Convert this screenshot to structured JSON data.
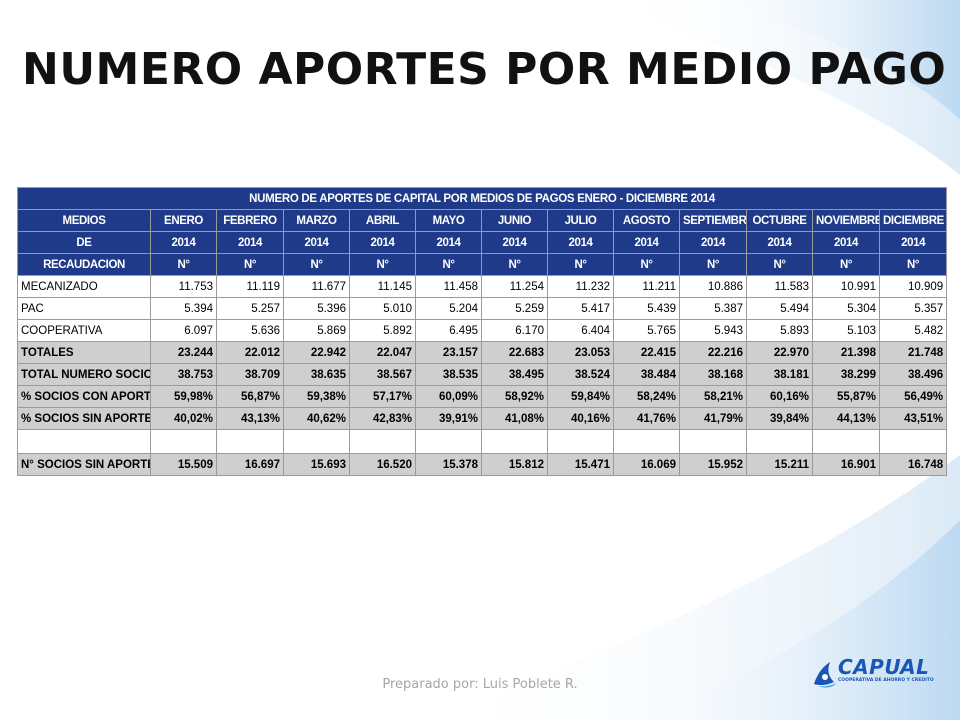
{
  "slide": {
    "title": "NUMERO APORTES POR MEDIO PAGO",
    "footer": "Preparado por: Luis Poblete R.",
    "logo_text": "CAPUAL",
    "logo_subtext": "COOPERATIVA DE AHORRO Y CREDITO"
  },
  "colors": {
    "header_bg": "#1f3a88",
    "total_row_bg": "#cfcfcf",
    "logo_blue": "#1a57b5",
    "swoosh_blue": "#cfe3f5"
  },
  "table": {
    "title": "NUMERO DE APORTES DE CAPITAL POR MEDIOS DE PAGOS ENERO - DICIEMBRE 2014",
    "header_first_col": [
      "MEDIOS",
      "DE",
      "RECAUDACION"
    ],
    "months": [
      {
        "name": "ENERO",
        "year": "2014",
        "unit": "N°"
      },
      {
        "name": "FEBRERO",
        "year": "2014",
        "unit": "N°"
      },
      {
        "name": "MARZO",
        "year": "2014",
        "unit": "N°"
      },
      {
        "name": "ABRIL",
        "year": "2014",
        "unit": "N°"
      },
      {
        "name": "MAYO",
        "year": "2014",
        "unit": "N°"
      },
      {
        "name": "JUNIO",
        "year": "2014",
        "unit": "N°"
      },
      {
        "name": "JULIO",
        "year": "2014",
        "unit": "N°"
      },
      {
        "name": "AGOSTO",
        "year": "2014",
        "unit": "N°"
      },
      {
        "name": "SEPTIEMBRE",
        "year": "2014",
        "unit": "N°"
      },
      {
        "name": "OCTUBRE",
        "year": "2014",
        "unit": "N°"
      },
      {
        "name": "NOVIEMBRE",
        "year": "2014",
        "unit": "N°"
      },
      {
        "name": "DICIEMBRE",
        "year": "2014",
        "unit": "N°"
      }
    ],
    "rows": [
      {
        "label": "MECANIZADO",
        "style": "normal",
        "values": [
          "11.753",
          "11.119",
          "11.677",
          "11.145",
          "11.458",
          "11.254",
          "11.232",
          "11.211",
          "10.886",
          "11.583",
          "10.991",
          "10.909"
        ]
      },
      {
        "label": "PAC",
        "style": "normal",
        "values": [
          "5.394",
          "5.257",
          "5.396",
          "5.010",
          "5.204",
          "5.259",
          "5.417",
          "5.439",
          "5.387",
          "5.494",
          "5.304",
          "5.357"
        ]
      },
      {
        "label": "COOPERATIVA",
        "style": "normal",
        "values": [
          "6.097",
          "5.636",
          "5.869",
          "5.892",
          "6.495",
          "6.170",
          "6.404",
          "5.765",
          "5.943",
          "5.893",
          "5.103",
          "5.482"
        ]
      },
      {
        "label": "TOTALES",
        "style": "gray",
        "values": [
          "23.244",
          "22.012",
          "22.942",
          "22.047",
          "23.157",
          "22.683",
          "23.053",
          "22.415",
          "22.216",
          "22.970",
          "21.398",
          "21.748"
        ]
      },
      {
        "label": "TOTAL NUMERO SOCIOS",
        "style": "gray",
        "values": [
          "38.753",
          "38.709",
          "38.635",
          "38.567",
          "38.535",
          "38.495",
          "38.524",
          "38.484",
          "38.168",
          "38.181",
          "38.299",
          "38.496"
        ]
      },
      {
        "label": "% SOCIOS CON APORTES",
        "style": "gray",
        "values": [
          "59,98%",
          "56,87%",
          "59,38%",
          "57,17%",
          "60,09%",
          "58,92%",
          "59,84%",
          "58,24%",
          "58,21%",
          "60,16%",
          "55,87%",
          "56,49%"
        ]
      },
      {
        "label": "% SOCIOS SIN APORTES",
        "style": "gray",
        "values": [
          "40,02%",
          "43,13%",
          "40,62%",
          "42,83%",
          "39,91%",
          "41,08%",
          "40,16%",
          "41,76%",
          "41,79%",
          "39,84%",
          "44,13%",
          "43,51%"
        ]
      },
      {
        "label": "",
        "style": "blank",
        "values": [
          "",
          "",
          "",
          "",
          "",
          "",
          "",
          "",
          "",
          "",
          "",
          ""
        ]
      },
      {
        "label": "N° SOCIOS SIN APORTES",
        "style": "gray",
        "values": [
          "15.509",
          "16.697",
          "15.693",
          "16.520",
          "15.378",
          "15.812",
          "15.471",
          "16.069",
          "15.952",
          "15.211",
          "16.901",
          "16.748"
        ]
      }
    ]
  }
}
